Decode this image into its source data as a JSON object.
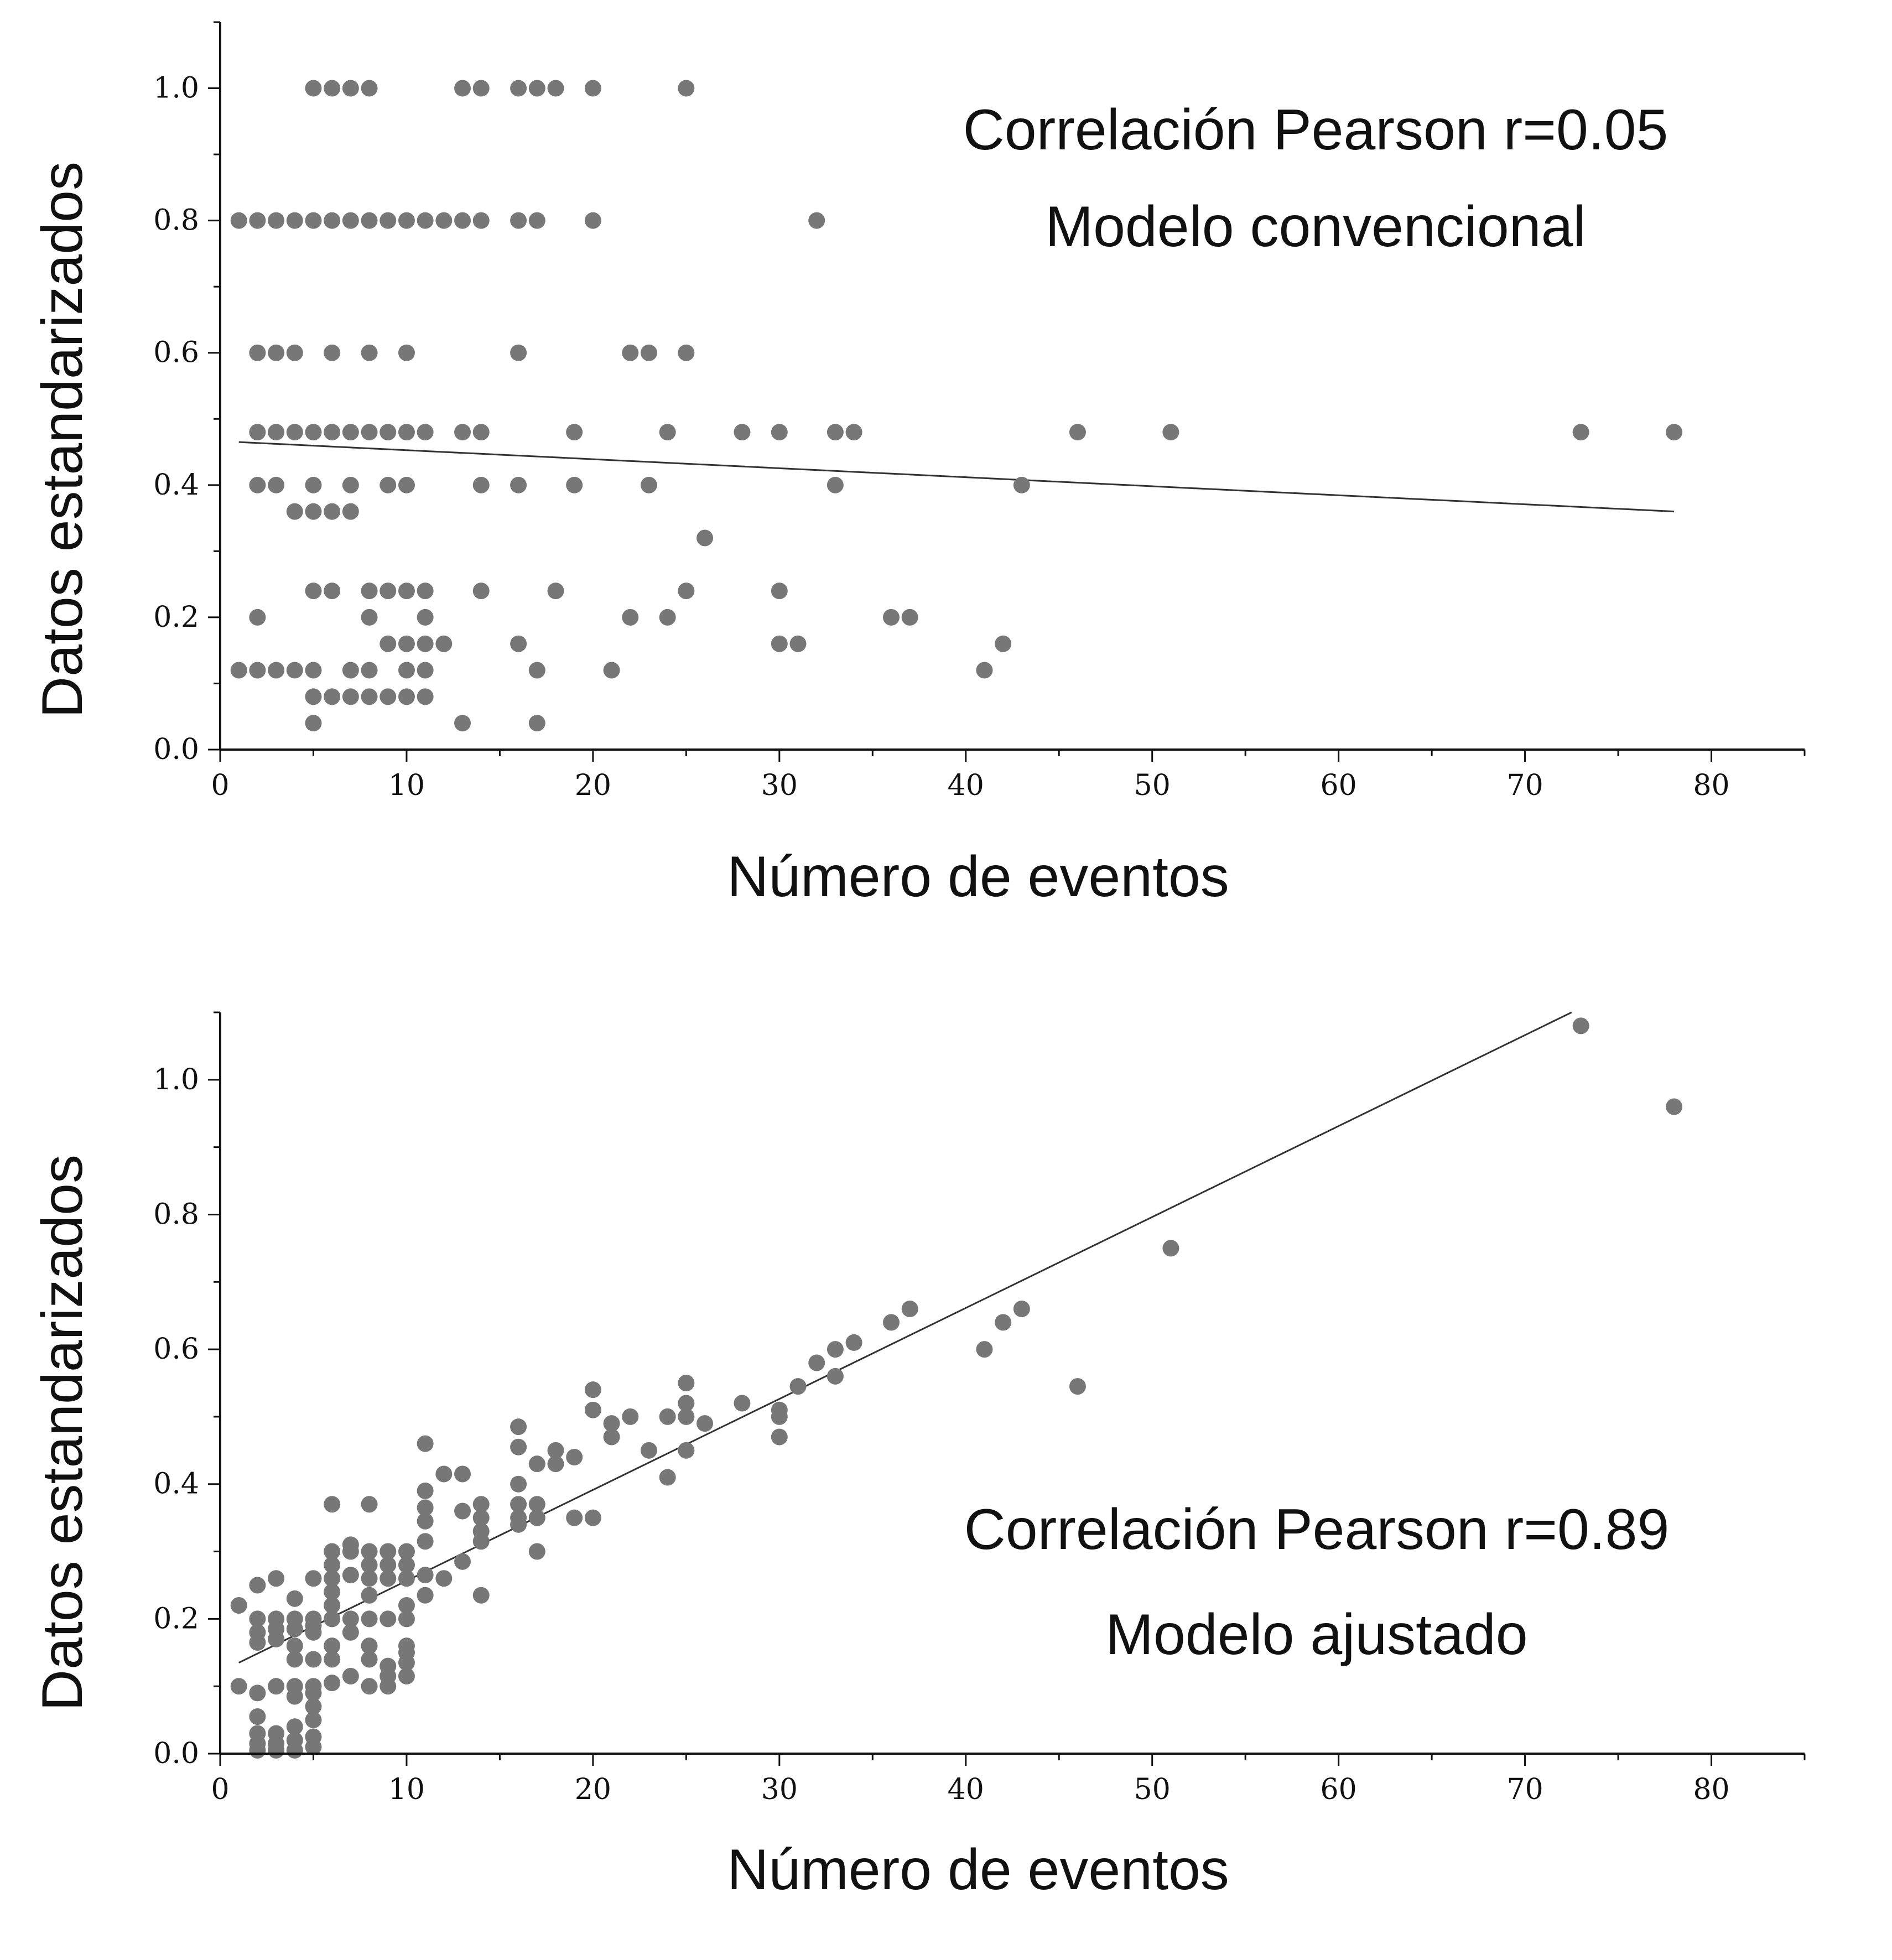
{
  "chart_data": [
    {
      "type": "scatter",
      "xlabel": "Número de eventos",
      "ylabel": "Datos estandarizados",
      "xlim": [
        0,
        85
      ],
      "ylim": [
        0,
        1.1
      ],
      "xticks": [
        "0",
        "10",
        "20",
        "30",
        "40",
        "50",
        "60",
        "70",
        "80"
      ],
      "yticks": [
        "0.0",
        "0.2",
        "0.4",
        "0.6",
        "0.8",
        "1.0"
      ],
      "annotations": [
        "Correlación Pearson r=0.05",
        "Modelo convencional"
      ],
      "annotation_position": "top-right",
      "fit_line": {
        "x": [
          1,
          78
        ],
        "y": [
          0.465,
          0.36
        ]
      },
      "point_color": "#777777",
      "line_color": "#333333",
      "points": [
        [
          5,
          1.0
        ],
        [
          6,
          1.0
        ],
        [
          7,
          1.0
        ],
        [
          8,
          1.0
        ],
        [
          13,
          1.0
        ],
        [
          14,
          1.0
        ],
        [
          16,
          1.0
        ],
        [
          17,
          1.0
        ],
        [
          18,
          1.0
        ],
        [
          20,
          1.0
        ],
        [
          25,
          1.0
        ],
        [
          1,
          0.8
        ],
        [
          2,
          0.8
        ],
        [
          3,
          0.8
        ],
        [
          4,
          0.8
        ],
        [
          5,
          0.8
        ],
        [
          6,
          0.8
        ],
        [
          7,
          0.8
        ],
        [
          8,
          0.8
        ],
        [
          9,
          0.8
        ],
        [
          10,
          0.8
        ],
        [
          11,
          0.8
        ],
        [
          12,
          0.8
        ],
        [
          13,
          0.8
        ],
        [
          14,
          0.8
        ],
        [
          16,
          0.8
        ],
        [
          17,
          0.8
        ],
        [
          20,
          0.8
        ],
        [
          32,
          0.8
        ],
        [
          2,
          0.6
        ],
        [
          3,
          0.6
        ],
        [
          4,
          0.6
        ],
        [
          6,
          0.6
        ],
        [
          8,
          0.6
        ],
        [
          10,
          0.6
        ],
        [
          16,
          0.6
        ],
        [
          22,
          0.6
        ],
        [
          23,
          0.6
        ],
        [
          25,
          0.6
        ],
        [
          2,
          0.48
        ],
        [
          3,
          0.48
        ],
        [
          4,
          0.48
        ],
        [
          5,
          0.48
        ],
        [
          6,
          0.48
        ],
        [
          7,
          0.48
        ],
        [
          8,
          0.48
        ],
        [
          9,
          0.48
        ],
        [
          10,
          0.48
        ],
        [
          11,
          0.48
        ],
        [
          13,
          0.48
        ],
        [
          14,
          0.48
        ],
        [
          19,
          0.48
        ],
        [
          24,
          0.48
        ],
        [
          28,
          0.48
        ],
        [
          30,
          0.48
        ],
        [
          33,
          0.48
        ],
        [
          34,
          0.48
        ],
        [
          46,
          0.48
        ],
        [
          51,
          0.48
        ],
        [
          73,
          0.48
        ],
        [
          78,
          0.48
        ],
        [
          2,
          0.4
        ],
        [
          3,
          0.4
        ],
        [
          5,
          0.4
        ],
        [
          7,
          0.4
        ],
        [
          9,
          0.4
        ],
        [
          10,
          0.4
        ],
        [
          14,
          0.4
        ],
        [
          16,
          0.4
        ],
        [
          19,
          0.4
        ],
        [
          23,
          0.4
        ],
        [
          33,
          0.4
        ],
        [
          43,
          0.4
        ],
        [
          4,
          0.36
        ],
        [
          5,
          0.36
        ],
        [
          6,
          0.36
        ],
        [
          7,
          0.36
        ],
        [
          26,
          0.32
        ],
        [
          5,
          0.24
        ],
        [
          6,
          0.24
        ],
        [
          8,
          0.24
        ],
        [
          9,
          0.24
        ],
        [
          10,
          0.24
        ],
        [
          11,
          0.24
        ],
        [
          14,
          0.24
        ],
        [
          18,
          0.24
        ],
        [
          25,
          0.24
        ],
        [
          30,
          0.24
        ],
        [
          2,
          0.2
        ],
        [
          8,
          0.2
        ],
        [
          11,
          0.2
        ],
        [
          22,
          0.2
        ],
        [
          24,
          0.2
        ],
        [
          36,
          0.2
        ],
        [
          37,
          0.2
        ],
        [
          9,
          0.16
        ],
        [
          10,
          0.16
        ],
        [
          11,
          0.16
        ],
        [
          12,
          0.16
        ],
        [
          16,
          0.16
        ],
        [
          30,
          0.16
        ],
        [
          31,
          0.16
        ],
        [
          42,
          0.16
        ],
        [
          1,
          0.12
        ],
        [
          2,
          0.12
        ],
        [
          3,
          0.12
        ],
        [
          4,
          0.12
        ],
        [
          5,
          0.12
        ],
        [
          7,
          0.12
        ],
        [
          8,
          0.12
        ],
        [
          10,
          0.12
        ],
        [
          11,
          0.12
        ],
        [
          17,
          0.12
        ],
        [
          21,
          0.12
        ],
        [
          41,
          0.12
        ],
        [
          5,
          0.08
        ],
        [
          6,
          0.08
        ],
        [
          7,
          0.08
        ],
        [
          8,
          0.08
        ],
        [
          9,
          0.08
        ],
        [
          10,
          0.08
        ],
        [
          11,
          0.08
        ],
        [
          5,
          0.04
        ],
        [
          13,
          0.04
        ],
        [
          17,
          0.04
        ]
      ]
    },
    {
      "type": "scatter",
      "xlabel": "Número de eventos",
      "ylabel": "Datos estandarizados",
      "xlim": [
        0,
        85
      ],
      "ylim": [
        0,
        1.1
      ],
      "xticks": [
        "0",
        "10",
        "20",
        "30",
        "40",
        "50",
        "60",
        "70",
        "80"
      ],
      "yticks": [
        "0.0",
        "0.2",
        "0.4",
        "0.6",
        "0.8",
        "1.0"
      ],
      "annotations": [
        "Correlación Pearson r=0.89",
        "Modelo ajustado"
      ],
      "annotation_position": "bottom-right",
      "fit_line": {
        "x": [
          1,
          72.5
        ],
        "y": [
          0.135,
          1.1
        ]
      },
      "point_color": "#777777",
      "line_color": "#333333",
      "points": [
        [
          73,
          1.08
        ],
        [
          78,
          0.96
        ],
        [
          51,
          0.75
        ],
        [
          46,
          0.545
        ],
        [
          41,
          0.6
        ],
        [
          42,
          0.64
        ],
        [
          43,
          0.66
        ],
        [
          36,
          0.64
        ],
        [
          37,
          0.66
        ],
        [
          34,
          0.61
        ],
        [
          33,
          0.6
        ],
        [
          33,
          0.56
        ],
        [
          32,
          0.58
        ],
        [
          31,
          0.545
        ],
        [
          30,
          0.51
        ],
        [
          30,
          0.5
        ],
        [
          30,
          0.47
        ],
        [
          28,
          0.52
        ],
        [
          26,
          0.49
        ],
        [
          25,
          0.55
        ],
        [
          25,
          0.52
        ],
        [
          25,
          0.5
        ],
        [
          25,
          0.45
        ],
        [
          24,
          0.5
        ],
        [
          24,
          0.41
        ],
        [
          23,
          0.45
        ],
        [
          22,
          0.5
        ],
        [
          21,
          0.49
        ],
        [
          21,
          0.47
        ],
        [
          20,
          0.54
        ],
        [
          20,
          0.51
        ],
        [
          20,
          0.35
        ],
        [
          19,
          0.44
        ],
        [
          19,
          0.35
        ],
        [
          18,
          0.45
        ],
        [
          18,
          0.43
        ],
        [
          17,
          0.43
        ],
        [
          17,
          0.37
        ],
        [
          17,
          0.35
        ],
        [
          17,
          0.3
        ],
        [
          16,
          0.485
        ],
        [
          16,
          0.455
        ],
        [
          16,
          0.4
        ],
        [
          16,
          0.37
        ],
        [
          16,
          0.35
        ],
        [
          16,
          0.34
        ],
        [
          14,
          0.37
        ],
        [
          14,
          0.35
        ],
        [
          14,
          0.33
        ],
        [
          14,
          0.315
        ],
        [
          14,
          0.235
        ],
        [
          13,
          0.415
        ],
        [
          13,
          0.36
        ],
        [
          13,
          0.285
        ],
        [
          12,
          0.415
        ],
        [
          12,
          0.26
        ],
        [
          11,
          0.46
        ],
        [
          11,
          0.39
        ],
        [
          11,
          0.365
        ],
        [
          11,
          0.345
        ],
        [
          11,
          0.315
        ],
        [
          11,
          0.265
        ],
        [
          11,
          0.235
        ],
        [
          10,
          0.3
        ],
        [
          10,
          0.28
        ],
        [
          10,
          0.26
        ],
        [
          10,
          0.22
        ],
        [
          10,
          0.2
        ],
        [
          10,
          0.16
        ],
        [
          10,
          0.15
        ],
        [
          10,
          0.135
        ],
        [
          10,
          0.115
        ],
        [
          9,
          0.3
        ],
        [
          9,
          0.28
        ],
        [
          9,
          0.26
        ],
        [
          9,
          0.2
        ],
        [
          9,
          0.13
        ],
        [
          9,
          0.115
        ],
        [
          9,
          0.1
        ],
        [
          8,
          0.37
        ],
        [
          8,
          0.3
        ],
        [
          8,
          0.28
        ],
        [
          8,
          0.26
        ],
        [
          8,
          0.235
        ],
        [
          8,
          0.2
        ],
        [
          8,
          0.16
        ],
        [
          8,
          0.14
        ],
        [
          8,
          0.1
        ],
        [
          7,
          0.31
        ],
        [
          7,
          0.3
        ],
        [
          7,
          0.265
        ],
        [
          7,
          0.2
        ],
        [
          7,
          0.18
        ],
        [
          7,
          0.115
        ],
        [
          6,
          0.37
        ],
        [
          6,
          0.3
        ],
        [
          6,
          0.28
        ],
        [
          6,
          0.26
        ],
        [
          6,
          0.24
        ],
        [
          6,
          0.22
        ],
        [
          6,
          0.2
        ],
        [
          6,
          0.16
        ],
        [
          6,
          0.14
        ],
        [
          6,
          0.105
        ],
        [
          5,
          0.26
        ],
        [
          5,
          0.2
        ],
        [
          5,
          0.19
        ],
        [
          5,
          0.18
        ],
        [
          5,
          0.14
        ],
        [
          5,
          0.1
        ],
        [
          5,
          0.09
        ],
        [
          5,
          0.07
        ],
        [
          5,
          0.05
        ],
        [
          5,
          0.025
        ],
        [
          5,
          0.01
        ],
        [
          4,
          0.23
        ],
        [
          4,
          0.2
        ],
        [
          4,
          0.185
        ],
        [
          4,
          0.16
        ],
        [
          4,
          0.14
        ],
        [
          4,
          0.1
        ],
        [
          4,
          0.085
        ],
        [
          4,
          0.04
        ],
        [
          4,
          0.02
        ],
        [
          4,
          0.005
        ],
        [
          3,
          0.26
        ],
        [
          3,
          0.2
        ],
        [
          3,
          0.185
        ],
        [
          3,
          0.17
        ],
        [
          3,
          0.1
        ],
        [
          3,
          0.03
        ],
        [
          3,
          0.015
        ],
        [
          3,
          0.005
        ],
        [
          2,
          0.25
        ],
        [
          2,
          0.2
        ],
        [
          2,
          0.18
        ],
        [
          2,
          0.165
        ],
        [
          2,
          0.09
        ],
        [
          2,
          0.055
        ],
        [
          2,
          0.03
        ],
        [
          2,
          0.015
        ],
        [
          2,
          0.005
        ],
        [
          1,
          0.22
        ],
        [
          1,
          0.1
        ]
      ]
    }
  ]
}
